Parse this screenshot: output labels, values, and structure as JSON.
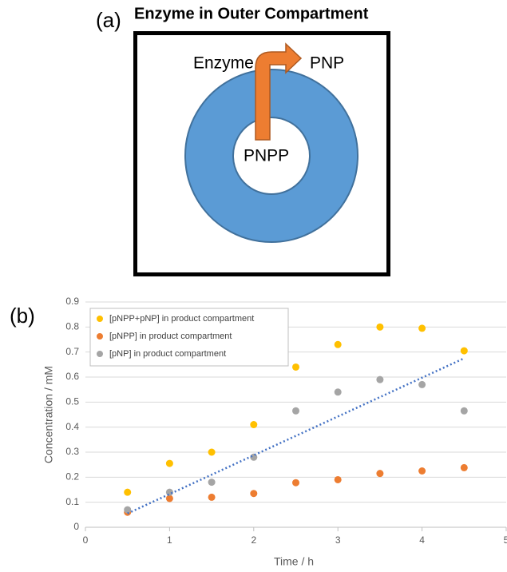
{
  "diagram": {
    "panel_label": "(a)",
    "title": "Enzyme in Outer Compartment",
    "enzyme_label": "Enzyme",
    "product_label": "PNP",
    "substrate_label": "PNPP"
  },
  "chart_data": {
    "type": "scatter",
    "panel_label": "(b)",
    "x_label": "Time / h",
    "y_label": "Concentration / mM",
    "xlim": [
      0,
      5
    ],
    "xticks": [
      0,
      1,
      2,
      3,
      4,
      5
    ],
    "ylim": [
      0,
      0.9
    ],
    "yticks": [
      0,
      0.1,
      0.2,
      0.3,
      0.4,
      0.5,
      0.6,
      0.7,
      0.8,
      0.9
    ],
    "grid": true,
    "legend": "upper left",
    "x": [
      0.5,
      1,
      1.5,
      2,
      2.5,
      3,
      3.5,
      4,
      4.5
    ],
    "series": [
      {
        "name": "[pNPP+pNP] in product compartment",
        "color": "#ffc000",
        "values": [
          0.14,
          0.255,
          0.3,
          0.41,
          0.64,
          0.73,
          0.8,
          0.795,
          0.705
        ]
      },
      {
        "name": "[pNPP] in product compartment",
        "color": "#ed7d31",
        "values": [
          0.06,
          0.115,
          0.12,
          0.135,
          0.178,
          0.19,
          0.215,
          0.225,
          0.238
        ]
      },
      {
        "name": "[pNP] in product compartment",
        "color": "#a5a5a5",
        "values": [
          0.07,
          0.14,
          0.18,
          0.28,
          0.465,
          0.54,
          0.59,
          0.57,
          0.465
        ]
      }
    ],
    "trendline": {
      "color": "#4472c4",
      "x": [
        0.5,
        4.5
      ],
      "values": [
        0.055,
        0.675
      ]
    }
  }
}
